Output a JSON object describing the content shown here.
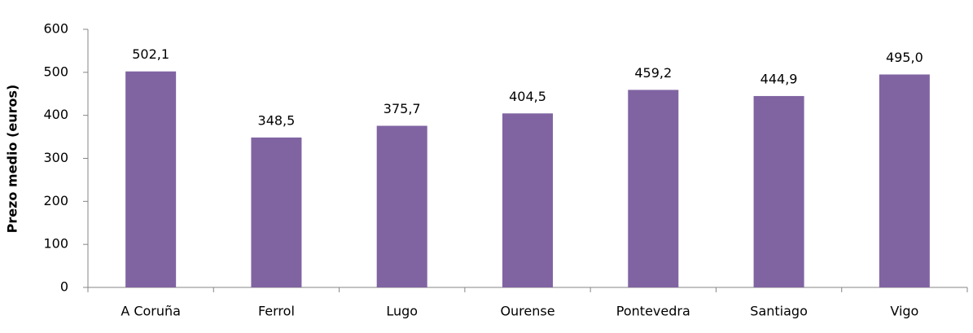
{
  "chart_data": {
    "type": "bar",
    "y_label": "Prezo medio (euros)",
    "categories": [
      "A Coruña",
      "Ferrol",
      "Lugo",
      "Ourense",
      "Pontevedra",
      "Santiago",
      "Vigo"
    ],
    "values": [
      502.1,
      348.5,
      375.7,
      404.5,
      459.2,
      444.9,
      495.0
    ],
    "value_labels": [
      "502,1",
      "348,5",
      "375,7",
      "404,5",
      "459,2",
      "444,9",
      "495,0"
    ],
    "color": "#8064a2",
    "ylim": [
      0,
      600
    ],
    "yticks": [
      0,
      100,
      200,
      300,
      400,
      500,
      600
    ],
    "grid": false
  }
}
